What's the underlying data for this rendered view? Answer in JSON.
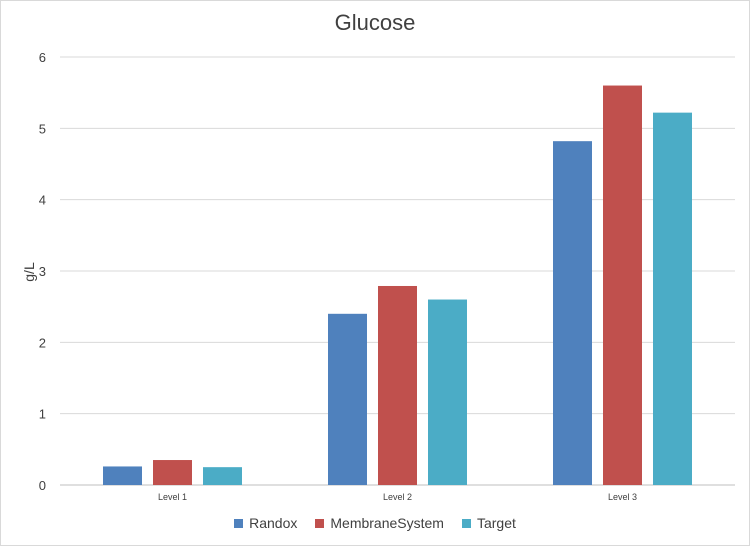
{
  "chart_data": {
    "type": "bar",
    "title": "Glucose",
    "xlabel": "",
    "ylabel": "g/L",
    "ylim": [
      0,
      6
    ],
    "yticks": [
      "0",
      "1",
      "2",
      "3",
      "4",
      "5",
      "6"
    ],
    "categories": [
      "Level 1",
      "Level 2",
      "Level 3"
    ],
    "series": [
      {
        "name": "Randox",
        "color": "#4f81bd",
        "values": [
          0.26,
          2.4,
          4.82
        ]
      },
      {
        "name": "MembraneSystem",
        "color": "#c0504d",
        "values": [
          0.35,
          2.79,
          5.6
        ]
      },
      {
        "name": "Target",
        "color": "#4bacc6",
        "values": [
          0.25,
          2.6,
          5.22
        ]
      }
    ],
    "grid": true,
    "legend": "bottom"
  }
}
